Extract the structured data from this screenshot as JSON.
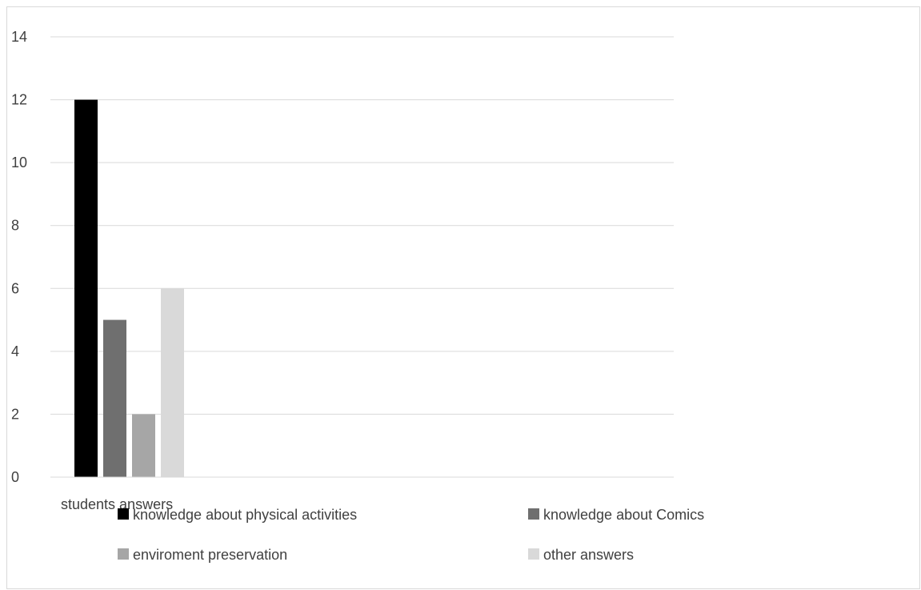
{
  "chart_data": {
    "type": "bar",
    "categories": [
      "students answers"
    ],
    "series": [
      {
        "name": "knowledge about physical activities",
        "values": [
          12
        ],
        "color": "#000000"
      },
      {
        "name": "knowledge about Comics",
        "values": [
          5
        ],
        "color": "#6f6f6f"
      },
      {
        "name": "enviroment preservation",
        "values": [
          2
        ],
        "color": "#a6a6a6"
      },
      {
        "name": "other answers",
        "values": [
          6
        ],
        "color": "#d9d9d9"
      }
    ],
    "title": "",
    "xlabel": "",
    "ylabel": "",
    "ylim": [
      0,
      14
    ],
    "yticks": [
      "0",
      "2",
      "4",
      "6",
      "8",
      "10",
      "12",
      "14"
    ],
    "grid": true,
    "legend_position": "bottom"
  }
}
